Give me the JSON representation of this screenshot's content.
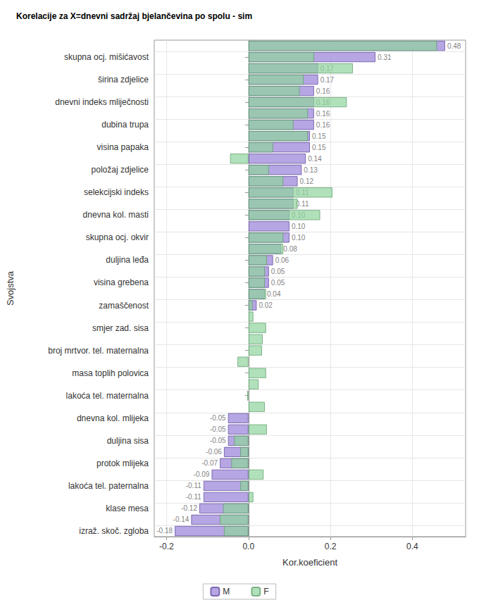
{
  "chart_data": {
    "type": "bar",
    "title": "Korelacije za X=dnevni sadržaj bjelančevina po spolu - sim",
    "x_label": "Kor.koeficient",
    "y_label": "Svojstva",
    "orientation": "horizontal",
    "grid": true,
    "legend": "bottom",
    "xlim": [
      -0.23,
      0.53
    ],
    "xticks": [
      -0.2,
      {
        "value": 0,
        "label": "0.0"
      },
      0.2,
      0.4
    ],
    "categories": [
      null,
      "skupna ocj. mišićavost",
      null,
      "širina zdjelice",
      null,
      "dnevni indeks mliječnosti",
      null,
      "dubina trupa",
      null,
      "visina papaka",
      null,
      "položaj zdjelice",
      null,
      "selekcijski indeks",
      null,
      "dnevna kol. masti",
      null,
      "skupna ocj. okvir",
      null,
      "duljina leđa",
      null,
      "visina grebena",
      null,
      "zamaščenost",
      null,
      "smjer zad. sisa",
      null,
      "broj mrtvor. tel. maternalna",
      null,
      "masa toplih polovica",
      null,
      "lakoća tel. maternalna",
      null,
      "dnevna kol. mlijeka",
      null,
      "duljina sisa",
      null,
      "protok mlijeka",
      null,
      "lakoća tel. paternalna",
      null,
      "klase mesa",
      null,
      "izraž. skoč. zgloba"
    ],
    "series": [
      {
        "name": "M",
        "color": "#a996de",
        "data_labels": true,
        "values": [
          0.48,
          0.31,
          0.17,
          0.17,
          0.16,
          0.16,
          0.16,
          0.16,
          0.15,
          0.15,
          0.14,
          0.13,
          0.12,
          0.11,
          0.11,
          0.1,
          0.1,
          0.1,
          0.08,
          0.06,
          0.05,
          0.05,
          0.04,
          0.02,
          null,
          null,
          null,
          null,
          null,
          null,
          null,
          null,
          null,
          -0.05,
          -0.05,
          -0.05,
          -0.06,
          -0.07,
          -0.09,
          -0.11,
          -0.11,
          -0.12,
          -0.14,
          -0.18
        ],
        "value_labels": [
          "0.48",
          "0.31",
          "0.17",
          "0.17",
          "0.16",
          "0.16",
          "0.16",
          "0.16",
          "0.15",
          "0.15",
          "0.14",
          "0.13",
          "0.12",
          "0.11",
          "0.11",
          "0.10",
          "0.10",
          "0.10",
          "0.08",
          "0.06",
          "0.05",
          "0.05",
          "0.04",
          "0.02",
          null,
          null,
          null,
          null,
          null,
          null,
          null,
          null,
          null,
          "-0.05",
          "-0.05",
          "-0.05",
          "-0.06",
          "-0.07",
          "-0.09",
          "-0.11",
          "-0.11",
          "-0.12",
          "-0.14",
          "-0.18"
        ]
      },
      {
        "name": "F",
        "color": "#8fd49c",
        "data_labels": false,
        "values": [
          0.46,
          0.16,
          0.255,
          0.135,
          0.125,
          0.24,
          0.145,
          0.11,
          0.145,
          0.06,
          -0.045,
          0.05,
          0.085,
          0.205,
          0.12,
          0.175,
          null,
          0.085,
          0.085,
          0.045,
          0.04,
          0.04,
          0.043,
          0.01,
          0.012,
          0.043,
          0.035,
          0.033,
          -0.027,
          0.043,
          0.025,
          -0.003,
          0.04,
          null,
          0.045,
          -0.035,
          -0.02,
          -0.042,
          0.037,
          -0.02,
          0.012,
          -0.062,
          -0.07,
          -0.06
        ]
      }
    ]
  }
}
